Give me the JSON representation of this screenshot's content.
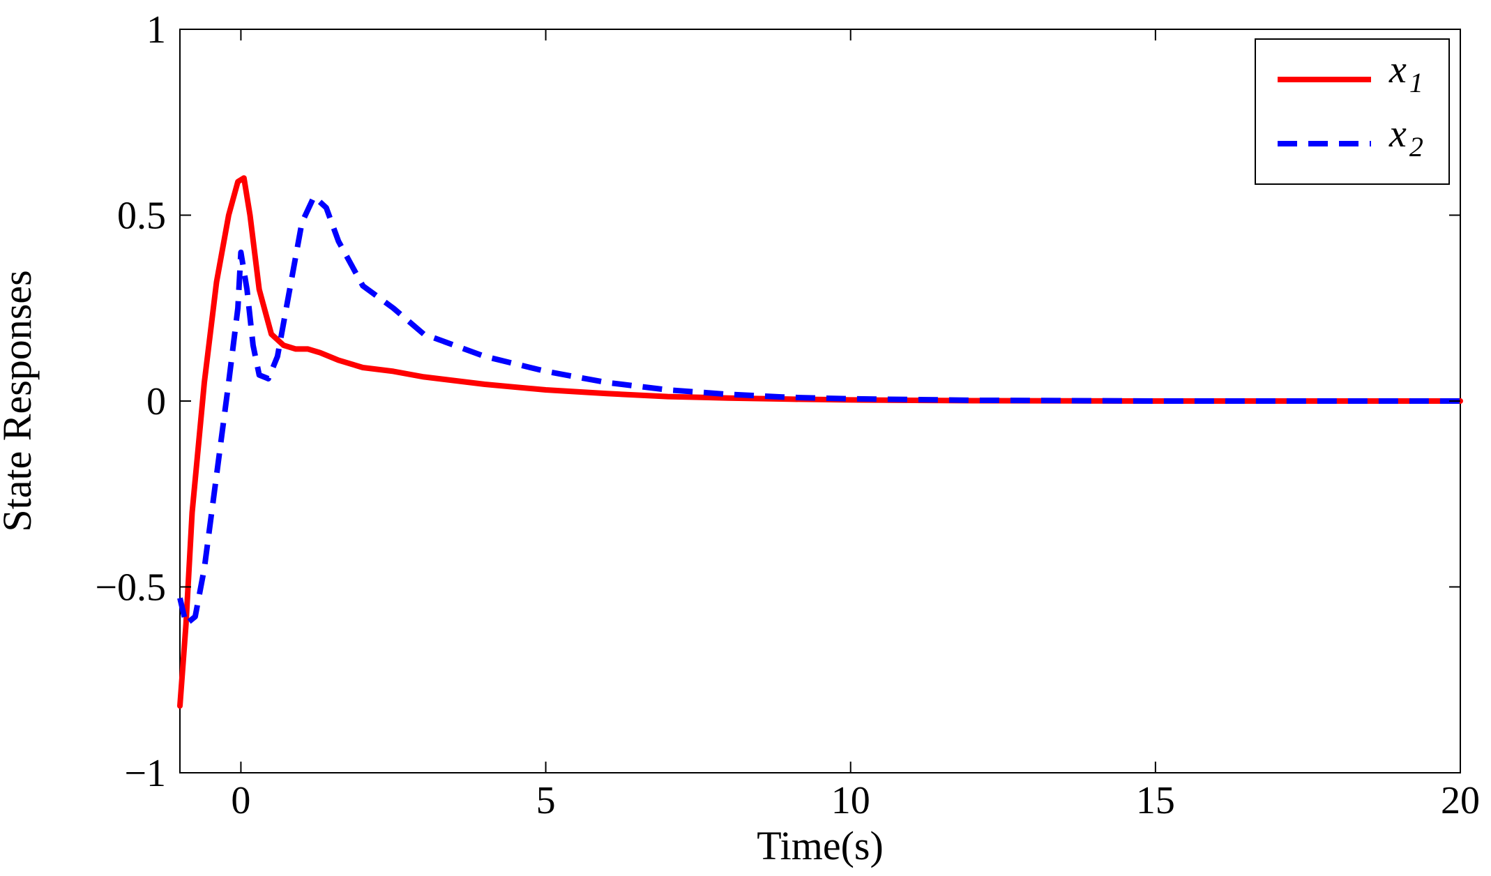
{
  "chart_data": {
    "type": "line",
    "title": "",
    "xlabel": "Time(s)",
    "ylabel": "State Responses",
    "xlim": [
      -1,
      20
    ],
    "ylim": [
      -1,
      1
    ],
    "xticks": [
      0,
      5,
      10,
      15,
      20
    ],
    "yticks": [
      -1,
      -0.5,
      0,
      0.5,
      1
    ],
    "xtick_labels": [
      "0",
      "5",
      "10",
      "15",
      "20"
    ],
    "ytick_labels": [
      "−1",
      "−0.5",
      "0",
      "0.5",
      "1"
    ],
    "grid": false,
    "legend_position": "top-right",
    "series": [
      {
        "name": "x",
        "subscript": "1",
        "color": "#ff0000",
        "style": "solid",
        "points": [
          [
            -1,
            -0.82
          ],
          [
            -0.9,
            -0.6
          ],
          [
            -0.8,
            -0.3
          ],
          [
            -0.6,
            0.05
          ],
          [
            -0.4,
            0.32
          ],
          [
            -0.2,
            0.5
          ],
          [
            -0.05,
            0.59
          ],
          [
            0.05,
            0.6
          ],
          [
            0.15,
            0.5
          ],
          [
            0.3,
            0.3
          ],
          [
            0.5,
            0.18
          ],
          [
            0.7,
            0.15
          ],
          [
            0.9,
            0.14
          ],
          [
            1.1,
            0.14
          ],
          [
            1.3,
            0.13
          ],
          [
            1.6,
            0.11
          ],
          [
            2.0,
            0.09
          ],
          [
            2.5,
            0.08
          ],
          [
            3.0,
            0.065
          ],
          [
            4.0,
            0.045
          ],
          [
            5.0,
            0.03
          ],
          [
            6.0,
            0.02
          ],
          [
            7.0,
            0.012
          ],
          [
            8.0,
            0.008
          ],
          [
            9.0,
            0.005
          ],
          [
            10.0,
            0.003
          ],
          [
            12.0,
            0.001
          ],
          [
            15.0,
            0.0
          ],
          [
            20.0,
            0.0
          ]
        ]
      },
      {
        "name": "x",
        "subscript": "2",
        "color": "#0000ff",
        "style": "dashed",
        "points": [
          [
            -1,
            -0.53
          ],
          [
            -0.9,
            -0.6
          ],
          [
            -0.75,
            -0.58
          ],
          [
            -0.6,
            -0.45
          ],
          [
            -0.4,
            -0.2
          ],
          [
            -0.2,
            0.05
          ],
          [
            -0.05,
            0.25
          ],
          [
            0.0,
            0.4
          ],
          [
            0.1,
            0.3
          ],
          [
            0.2,
            0.15
          ],
          [
            0.3,
            0.07
          ],
          [
            0.45,
            0.06
          ],
          [
            0.6,
            0.12
          ],
          [
            0.8,
            0.3
          ],
          [
            1.0,
            0.48
          ],
          [
            1.2,
            0.55
          ],
          [
            1.4,
            0.52
          ],
          [
            1.6,
            0.43
          ],
          [
            1.8,
            0.37
          ],
          [
            2.0,
            0.31
          ],
          [
            2.5,
            0.25
          ],
          [
            3.0,
            0.18
          ],
          [
            4.0,
            0.12
          ],
          [
            5.0,
            0.08
          ],
          [
            6.0,
            0.05
          ],
          [
            7.0,
            0.03
          ],
          [
            8.0,
            0.018
          ],
          [
            9.0,
            0.01
          ],
          [
            10.0,
            0.006
          ],
          [
            12.0,
            0.002
          ],
          [
            15.0,
            0.0
          ],
          [
            20.0,
            0.0
          ]
        ]
      }
    ]
  }
}
